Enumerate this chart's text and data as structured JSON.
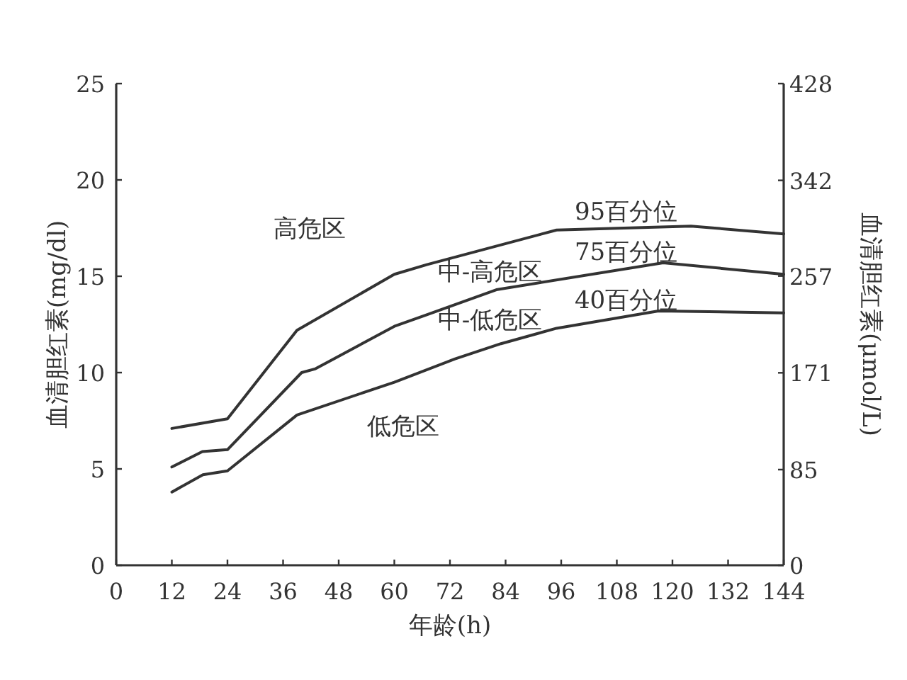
{
  "chart_data": {
    "type": "line",
    "xlabel": "年龄(h)",
    "ylabel": "血清胆红素(mg/dl)",
    "y2label": "血清胆红素(μmol/L)",
    "xlim": [
      0,
      144
    ],
    "xticks": [
      0,
      12,
      24,
      36,
      48,
      60,
      72,
      84,
      96,
      108,
      120,
      132,
      144
    ],
    "ylim": [
      0,
      25
    ],
    "yticks": [
      0,
      5,
      10,
      15,
      20,
      25
    ],
    "y2lim": [
      0,
      428
    ],
    "y2ticks": [
      0,
      85,
      171,
      257,
      342,
      428
    ],
    "marker": "none",
    "line_style": "solid",
    "series": [
      {
        "name": "95百分位",
        "color": "#333333",
        "x": [
          12,
          24,
          39,
          60,
          67,
          95,
          124,
          144
        ],
        "values": [
          7.1,
          7.6,
          12.2,
          15.1,
          15.6,
          17.4,
          17.6,
          17.2
        ]
      },
      {
        "name": "75百分位",
        "color": "#333333",
        "x": [
          12,
          18.6,
          24,
          40,
          43,
          60,
          67,
          82,
          118,
          144
        ],
        "values": [
          5.1,
          5.9,
          6.0,
          10.0,
          10.2,
          12.4,
          13.0,
          14.3,
          15.7,
          15.1
        ]
      },
      {
        "name": "40百分位",
        "color": "#333333",
        "x": [
          12,
          18.7,
          24,
          39,
          60,
          73,
          83,
          95,
          117,
          144
        ],
        "values": [
          3.8,
          4.7,
          4.9,
          7.8,
          9.5,
          10.7,
          11.5,
          12.3,
          13.2,
          13.1
        ]
      }
    ],
    "annotations": [
      "高危区",
      "中-高危区",
      "中-低危区",
      "低危区"
    ]
  }
}
